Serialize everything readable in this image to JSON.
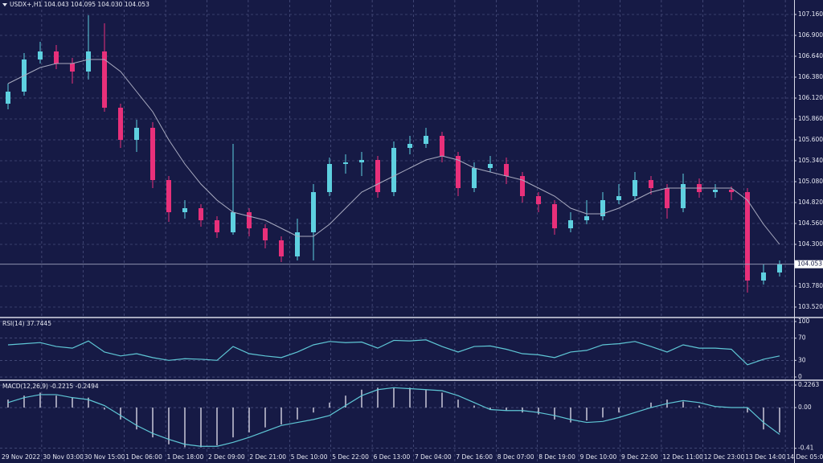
{
  "chart_data": [
    {
      "type": "candlestick",
      "title": "USDX+,H1  104.043 104.095 104.030 104.053",
      "x_labels": [
        "29 Nov 2022",
        "30 Nov 03:00",
        "30 Nov 15:00",
        "1 Dec 06:00",
        "1 Dec 18:00",
        "2 Dec 09:00",
        "2 Dec 21:00",
        "5 Dec 10:00",
        "5 Dec 22:00",
        "6 Dec 13:00",
        "7 Dec 04:00",
        "7 Dec 16:00",
        "8 Dec 07:00",
        "8 Dec 19:00",
        "9 Dec 10:00",
        "9 Dec 22:00",
        "12 Dec 11:00",
        "12 Dec 23:00",
        "13 Dec 14:00",
        "14 Dec 05:00"
      ],
      "open": [
        106.05,
        106.2,
        106.6,
        106.7,
        106.55,
        106.45,
        106.7,
        106.0,
        105.6,
        105.75,
        105.1,
        104.7,
        104.75,
        104.6,
        104.45,
        104.7,
        104.5,
        104.35,
        104.15,
        104.45,
        104.95,
        105.3,
        105.32,
        105.35,
        104.95,
        105.5,
        105.55,
        105.65,
        105.4,
        105.0,
        105.25,
        105.3,
        105.15,
        104.9,
        104.8,
        104.5,
        104.6,
        104.65,
        104.85,
        104.9,
        105.1,
        105.0,
        104.75,
        105.05,
        104.95,
        104.98,
        104.95,
        103.85,
        103.95
      ],
      "high": [
        106.3,
        106.68,
        106.82,
        106.78,
        106.62,
        107.15,
        107.05,
        106.05,
        105.85,
        105.82,
        105.15,
        104.85,
        104.8,
        104.65,
        105.55,
        104.75,
        104.55,
        104.4,
        104.62,
        105.05,
        105.38,
        105.42,
        105.45,
        105.4,
        105.58,
        105.65,
        105.75,
        105.7,
        105.45,
        105.32,
        105.4,
        105.38,
        105.2,
        104.95,
        104.85,
        104.7,
        104.85,
        104.95,
        105.05,
        105.2,
        105.15,
        105.05,
        105.18,
        105.12,
        105.05,
        105.02,
        105.0,
        104.05,
        104.1
      ],
      "low": [
        105.98,
        106.15,
        106.55,
        106.48,
        106.3,
        106.35,
        105.95,
        105.5,
        105.45,
        105.0,
        104.58,
        104.62,
        104.52,
        104.38,
        104.42,
        104.4,
        104.25,
        104.08,
        104.1,
        104.1,
        104.9,
        105.18,
        105.15,
        104.88,
        104.9,
        105.42,
        105.5,
        105.32,
        104.9,
        104.95,
        105.2,
        105.05,
        104.82,
        104.7,
        104.42,
        104.45,
        104.55,
        104.6,
        104.8,
        104.85,
        104.92,
        104.62,
        104.7,
        104.88,
        104.88,
        104.85,
        103.7,
        103.8,
        103.9
      ],
      "close": [
        106.2,
        106.6,
        106.7,
        106.55,
        106.45,
        106.7,
        106.0,
        105.6,
        105.75,
        105.1,
        104.7,
        104.75,
        104.6,
        104.45,
        104.7,
        104.5,
        104.35,
        104.15,
        104.45,
        104.95,
        105.3,
        105.32,
        105.35,
        104.95,
        105.5,
        105.55,
        105.65,
        105.4,
        105.0,
        105.25,
        105.3,
        105.15,
        104.9,
        104.8,
        104.5,
        104.6,
        104.65,
        104.85,
        104.9,
        105.1,
        105.0,
        104.75,
        105.05,
        104.95,
        104.98,
        104.95,
        103.85,
        103.95,
        104.05
      ],
      "ma_values": [
        106.3,
        106.4,
        106.5,
        106.55,
        106.55,
        106.6,
        106.6,
        106.45,
        106.2,
        105.95,
        105.6,
        105.3,
        105.05,
        104.85,
        104.7,
        104.65,
        104.6,
        104.5,
        104.4,
        104.4,
        104.55,
        104.75,
        104.95,
        105.05,
        105.15,
        105.25,
        105.35,
        105.4,
        105.35,
        105.25,
        105.2,
        105.15,
        105.1,
        105.0,
        104.9,
        104.75,
        104.68,
        104.68,
        104.75,
        104.85,
        104.95,
        105.0,
        105.0,
        105.0,
        105.0,
        105.0,
        104.85,
        104.55,
        104.3
      ],
      "up_color": "#5ed0e0",
      "down_color": "#e8307a",
      "ma_color": "#a9abc0",
      "current_price": {
        "value": 104.053,
        "label": "104.053"
      },
      "ylim": [
        103.39,
        107.34
      ],
      "yticks": [
        {
          "value": 107.16,
          "label": "107.160"
        },
        {
          "value": 106.9,
          "label": "106.900"
        },
        {
          "value": 106.64,
          "label": "106.640"
        },
        {
          "value": 106.38,
          "label": "106.380"
        },
        {
          "value": 106.12,
          "label": "106.120"
        },
        {
          "value": 105.86,
          "label": "105.860"
        },
        {
          "value": 105.6,
          "label": "105.600"
        },
        {
          "value": 105.34,
          "label": "105.340"
        },
        {
          "value": 105.08,
          "label": "105.080"
        },
        {
          "value": 104.82,
          "label": "104.820"
        },
        {
          "value": 104.56,
          "label": "104.560"
        },
        {
          "value": 104.3,
          "label": "104.300"
        },
        {
          "value": 103.78,
          "label": "103.780"
        },
        {
          "value": 103.52,
          "label": "103.520"
        }
      ],
      "grid": true
    },
    {
      "type": "line",
      "title": "RSI(14) 37.7445",
      "values": [
        58,
        60,
        62,
        55,
        52,
        65,
        45,
        38,
        42,
        35,
        30,
        33,
        32,
        30,
        55,
        42,
        38,
        35,
        45,
        58,
        64,
        62,
        63,
        52,
        66,
        65,
        67,
        55,
        45,
        55,
        56,
        50,
        42,
        40,
        35,
        45,
        48,
        58,
        60,
        64,
        55,
        45,
        58,
        52,
        52,
        50,
        22,
        32,
        38
      ],
      "color": "#5fc7d6",
      "ylim": [
        -4.3,
        104.3
      ],
      "yticks": [
        100,
        70,
        30,
        0
      ],
      "grid": true
    },
    {
      "type": "macd",
      "title": "MACD(12,26,9) -0.2215 -0.2494",
      "histogram": [
        0.08,
        0.12,
        0.15,
        0.12,
        0.1,
        0.1,
        -0.02,
        -0.12,
        -0.22,
        -0.3,
        -0.37,
        -0.4,
        -0.4,
        -0.38,
        -0.3,
        -0.25,
        -0.2,
        -0.17,
        -0.12,
        -0.05,
        0.05,
        0.12,
        0.18,
        0.2,
        0.2,
        0.2,
        0.18,
        0.15,
        0.08,
        0.02,
        -0.02,
        -0.03,
        -0.05,
        -0.07,
        -0.12,
        -0.15,
        -0.13,
        -0.1,
        -0.05,
        0.0,
        0.05,
        0.08,
        0.06,
        0.02,
        0.0,
        0.0,
        -0.05,
        -0.22,
        -0.25
      ],
      "signal": [
        0.05,
        0.1,
        0.13,
        0.13,
        0.1,
        0.08,
        0.02,
        -0.08,
        -0.18,
        -0.26,
        -0.32,
        -0.37,
        -0.39,
        -0.39,
        -0.35,
        -0.3,
        -0.24,
        -0.18,
        -0.15,
        -0.12,
        -0.08,
        0.02,
        0.12,
        0.18,
        0.2,
        0.19,
        0.18,
        0.17,
        0.12,
        0.05,
        -0.02,
        -0.03,
        -0.03,
        -0.05,
        -0.08,
        -0.12,
        -0.15,
        -0.14,
        -0.1,
        -0.05,
        0.0,
        0.04,
        0.07,
        0.05,
        0.01,
        0.0,
        0.0,
        -0.15,
        -0.27
      ],
      "histogram_color": "#c8c8d8",
      "signal_color": "#5fc7d6",
      "ylim": [
        -0.558,
        0.259
      ],
      "yticks": [
        0.2263,
        {
          "value": 0,
          "label": "0.00"
        },
        -0.41
      ],
      "grid": true
    }
  ]
}
